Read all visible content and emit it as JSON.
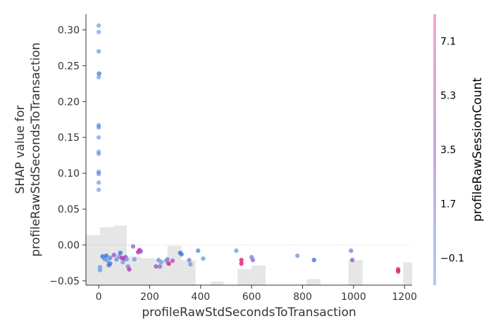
{
  "chart_data": {
    "type": "scatter",
    "title": "",
    "xlabel": "profileRawStdSecondsToTransaction",
    "ylabel_lines": [
      "SHAP value for",
      "profileRawStdSecondsToTransaction"
    ],
    "xlim": [
      -50,
      1230
    ],
    "ylim": [
      -0.056,
      0.322
    ],
    "x_ticks": [
      0,
      200,
      400,
      600,
      800,
      1000,
      1200
    ],
    "y_ticks": [
      -0.05,
      0.0,
      0.05,
      0.1,
      0.15,
      0.2,
      0.25,
      0.3
    ],
    "y_tick_labels": [
      "−0.05",
      "0.00",
      "0.05",
      "0.10",
      "0.15",
      "0.20",
      "0.25",
      "0.30"
    ],
    "zero_line": true,
    "grid": false,
    "colorbar": {
      "label": "profileRawSessionCount",
      "range": [
        -1.0,
        8.0
      ],
      "ticks": [
        -0.1,
        1.7,
        3.5,
        5.3,
        7.1
      ],
      "tick_labels": [
        "−0.1",
        "1.7",
        "3.5",
        "5.3",
        "7.1"
      ],
      "colors": [
        "#a8d0f0",
        "#c8a8e0",
        "#f4a8cc"
      ]
    },
    "histogram": {
      "height_fraction": 0.22,
      "bars": [
        {
          "x0": -50,
          "x1": 5,
          "h": 0.84
        },
        {
          "x0": 5,
          "x1": 60,
          "h": 0.97
        },
        {
          "x0": 60,
          "x1": 110,
          "h": 1.0
        },
        {
          "x0": 110,
          "x1": 165,
          "h": 0.48
        },
        {
          "x0": 165,
          "x1": 220,
          "h": 0.45
        },
        {
          "x0": 220,
          "x1": 270,
          "h": 0.43
        },
        {
          "x0": 270,
          "x1": 325,
          "h": 0.66
        },
        {
          "x0": 325,
          "x1": 380,
          "h": 0.42
        },
        {
          "x0": 380,
          "x1": 440,
          "h": 0.0
        },
        {
          "x0": 440,
          "x1": 490,
          "h": 0.06
        },
        {
          "x0": 490,
          "x1": 545,
          "h": 0.0
        },
        {
          "x0": 545,
          "x1": 600,
          "h": 0.27
        },
        {
          "x0": 600,
          "x1": 655,
          "h": 0.33
        },
        {
          "x0": 655,
          "x1": 710,
          "h": 0.0
        },
        {
          "x0": 760,
          "x1": 815,
          "h": 0.0
        },
        {
          "x0": 815,
          "x1": 870,
          "h": 0.1
        },
        {
          "x0": 980,
          "x1": 1035,
          "h": 0.42
        },
        {
          "x0": 1140,
          "x1": 1195,
          "h": 0.0
        },
        {
          "x0": 1195,
          "x1": 1230,
          "h": 0.38
        }
      ]
    },
    "points": [
      {
        "x": 0,
        "y": 0.306,
        "c": 0.0
      },
      {
        "x": 0,
        "y": 0.297,
        "c": 0.0
      },
      {
        "x": 0,
        "y": 0.27,
        "c": -0.6
      },
      {
        "x": 0,
        "y": 0.239,
        "c": 0.2
      },
      {
        "x": 3,
        "y": 0.239,
        "c": -0.2
      },
      {
        "x": 0,
        "y": 0.234,
        "c": 0.0
      },
      {
        "x": 0,
        "y": 0.167,
        "c": -0.8
      },
      {
        "x": 0,
        "y": 0.164,
        "c": -0.8
      },
      {
        "x": 0,
        "y": 0.15,
        "c": 0.0
      },
      {
        "x": 0,
        "y": 0.13,
        "c": 0.0
      },
      {
        "x": 0,
        "y": 0.127,
        "c": 0.3
      },
      {
        "x": 0,
        "y": 0.102,
        "c": -0.8
      },
      {
        "x": 0,
        "y": 0.099,
        "c": -0.6
      },
      {
        "x": 0,
        "y": 0.087,
        "c": -0.3
      },
      {
        "x": 0,
        "y": 0.077,
        "c": 0.0
      },
      {
        "x": 5,
        "y": -0.031,
        "c": 2.0
      },
      {
        "x": 5,
        "y": -0.035,
        "c": 1.5
      },
      {
        "x": 15,
        "y": -0.016,
        "c": -0.6
      },
      {
        "x": 20,
        "y": -0.018,
        "c": 0.5
      },
      {
        "x": 25,
        "y": -0.02,
        "c": 1.2
      },
      {
        "x": 30,
        "y": -0.015,
        "c": -0.8
      },
      {
        "x": 35,
        "y": -0.022,
        "c": 2.0
      },
      {
        "x": 40,
        "y": -0.028,
        "c": -0.8
      },
      {
        "x": 45,
        "y": -0.026,
        "c": -0.5
      },
      {
        "x": 45,
        "y": -0.018,
        "c": 0.5
      },
      {
        "x": 60,
        "y": -0.014,
        "c": 4.0
      },
      {
        "x": 70,
        "y": -0.02,
        "c": 3.0
      },
      {
        "x": 80,
        "y": -0.016,
        "c": 2.0
      },
      {
        "x": 85,
        "y": -0.011,
        "c": -0.8
      },
      {
        "x": 90,
        "y": -0.018,
        "c": 6.0
      },
      {
        "x": 95,
        "y": -0.024,
        "c": 2.0
      },
      {
        "x": 100,
        "y": -0.019,
        "c": 5.0
      },
      {
        "x": 105,
        "y": -0.017,
        "c": 4.5
      },
      {
        "x": 110,
        "y": -0.02,
        "c": 2.0
      },
      {
        "x": 115,
        "y": -0.03,
        "c": 3.0
      },
      {
        "x": 120,
        "y": -0.034,
        "c": 5.0
      },
      {
        "x": 135,
        "y": -0.002,
        "c": 3.5
      },
      {
        "x": 140,
        "y": -0.02,
        "c": 2.0
      },
      {
        "x": 155,
        "y": -0.01,
        "c": 6.5
      },
      {
        "x": 160,
        "y": -0.007,
        "c": 5.5
      },
      {
        "x": 165,
        "y": -0.009,
        "c": 4.0
      },
      {
        "x": 225,
        "y": -0.03,
        "c": 4.0
      },
      {
        "x": 235,
        "y": -0.021,
        "c": 2.5
      },
      {
        "x": 240,
        "y": -0.03,
        "c": 3.5
      },
      {
        "x": 245,
        "y": -0.024,
        "c": 2.0
      },
      {
        "x": 265,
        "y": -0.022,
        "c": 1.8
      },
      {
        "x": 270,
        "y": -0.02,
        "c": 3.0
      },
      {
        "x": 275,
        "y": -0.026,
        "c": 7.5
      },
      {
        "x": 290,
        "y": -0.022,
        "c": 4.0
      },
      {
        "x": 320,
        "y": -0.011,
        "c": -0.8
      },
      {
        "x": 325,
        "y": -0.013,
        "c": -0.5
      },
      {
        "x": 355,
        "y": -0.021,
        "c": 3.0
      },
      {
        "x": 360,
        "y": -0.027,
        "c": 2.0
      },
      {
        "x": 390,
        "y": -0.008,
        "c": 0.5
      },
      {
        "x": 410,
        "y": -0.019,
        "c": 2.0
      },
      {
        "x": 540,
        "y": -0.008,
        "c": 1.8
      },
      {
        "x": 560,
        "y": -0.021,
        "c": 7.5
      },
      {
        "x": 560,
        "y": -0.026,
        "c": 7.5
      },
      {
        "x": 600,
        "y": -0.017,
        "c": 2.5
      },
      {
        "x": 605,
        "y": -0.021,
        "c": 3.5
      },
      {
        "x": 780,
        "y": -0.015,
        "c": 2.0
      },
      {
        "x": 845,
        "y": -0.021,
        "c": -0.8
      },
      {
        "x": 990,
        "y": -0.008,
        "c": 3.0
      },
      {
        "x": 995,
        "y": -0.021,
        "c": 4.0
      },
      {
        "x": 1175,
        "y": -0.034,
        "c": 7.5
      },
      {
        "x": 1175,
        "y": -0.037,
        "c": 7.5
      }
    ]
  }
}
